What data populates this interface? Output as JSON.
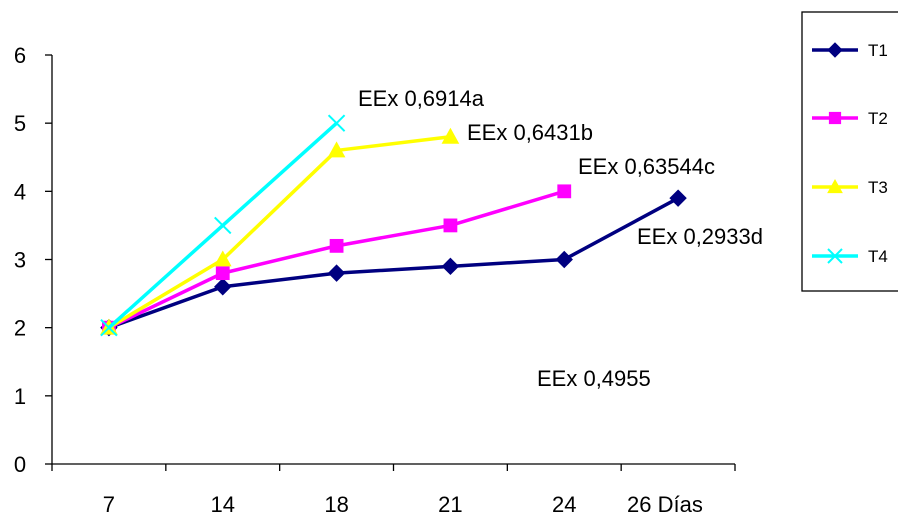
{
  "chart_data": {
    "type": "line",
    "categories": [
      "7",
      "14",
      "18",
      "21",
      "24",
      "26 Días"
    ],
    "ylim": [
      0,
      6
    ],
    "yticks": [
      "0",
      "1",
      "2",
      "3",
      "4",
      "5",
      "6"
    ],
    "grid": false,
    "legend_position": "right",
    "series": [
      {
        "name": "T1",
        "color": "#000080",
        "marker": "diamond",
        "values": [
          2,
          2.6,
          2.8,
          2.9,
          3.0,
          3.9
        ]
      },
      {
        "name": "T2",
        "color": "#ff00ff",
        "marker": "square",
        "values": [
          2,
          2.8,
          3.2,
          3.5,
          4.0,
          null
        ]
      },
      {
        "name": "T3",
        "color": "#ffff00",
        "marker": "triangle",
        "values": [
          2,
          3.0,
          4.6,
          4.8,
          null,
          null
        ]
      },
      {
        "name": "T4",
        "color": "#00ffff",
        "marker": "x",
        "values": [
          2,
          3.5,
          5.0,
          null,
          null,
          null
        ]
      }
    ],
    "annotations": [
      {
        "text": "EEx 0,6914a"
      },
      {
        "text": "EEx 0,6431b"
      },
      {
        "text": "EEx 0,63544c"
      },
      {
        "text": "EEx 0,2933d"
      },
      {
        "text": "EEx 0,4955"
      }
    ]
  }
}
